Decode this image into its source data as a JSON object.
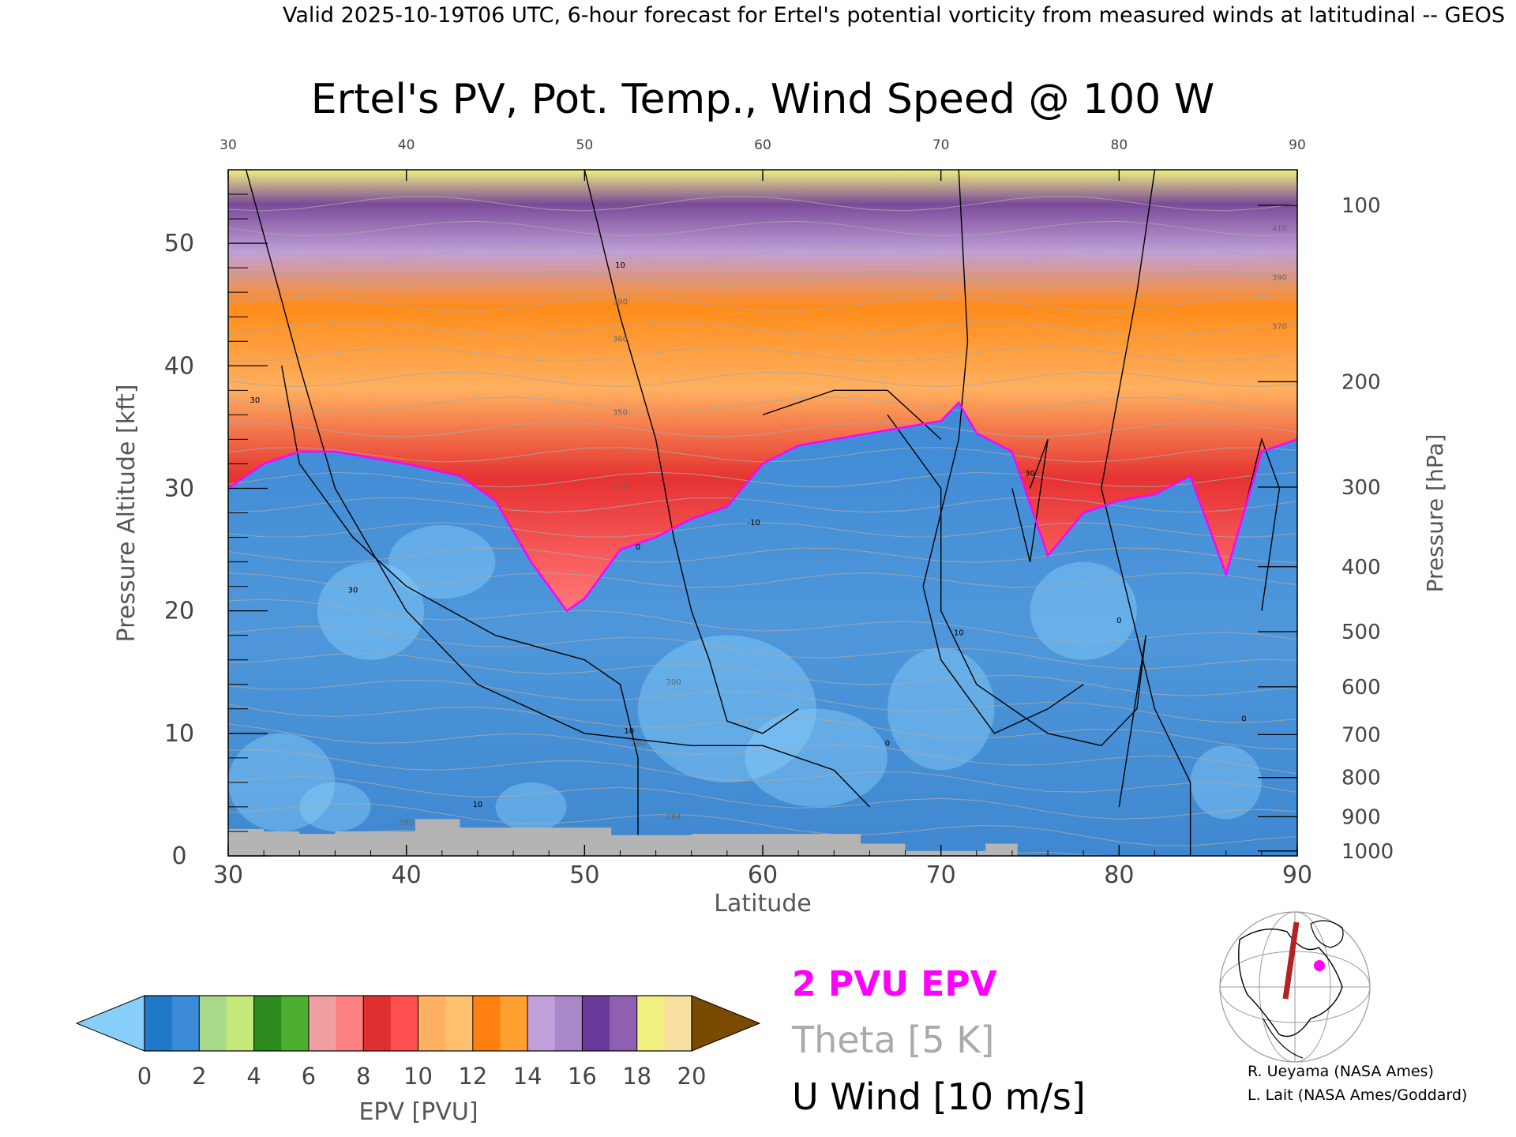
{
  "header": {
    "valid_line": "Valid 2025-10-19T06 UTC, 6-hour forecast for Ertel's potential vorticity from measured winds at latitudinal -- GEOS"
  },
  "chart_data": {
    "type": "heatmap",
    "title": "Ertel's PV, Pot. Temp., Wind Speed @ 100 W",
    "xlabel": "Latitude",
    "ylabel": "Pressure Altitude [kft]",
    "ylabel_right": "Pressure [hPa]",
    "xlim": [
      30,
      90
    ],
    "ylim": [
      0,
      56
    ],
    "x_ticks": [
      "30",
      "40",
      "50",
      "60",
      "70",
      "80",
      "90"
    ],
    "y_ticks": [
      "0",
      "10",
      "20",
      "30",
      "40",
      "50"
    ],
    "pressure_ticks": [
      {
        "label": "100",
        "kft": 53.1
      },
      {
        "label": "200",
        "kft": 38.7
      },
      {
        "label": "300",
        "kft": 30.1
      },
      {
        "label": "400",
        "kft": 23.6
      },
      {
        "label": "500",
        "kft": 18.3
      },
      {
        "label": "600",
        "kft": 13.8
      },
      {
        "label": "700",
        "kft": 9.9
      },
      {
        "label": "800",
        "kft": 6.4
      },
      {
        "label": "900",
        "kft": 3.2
      },
      {
        "label": "1000",
        "kft": 0.4
      }
    ],
    "tropopause_2pvu_kft": [
      {
        "lat": 30,
        "kft": 30
      },
      {
        "lat": 32,
        "kft": 32
      },
      {
        "lat": 34,
        "kft": 33
      },
      {
        "lat": 36,
        "kft": 33
      },
      {
        "lat": 40,
        "kft": 32
      },
      {
        "lat": 43,
        "kft": 31
      },
      {
        "lat": 45,
        "kft": 29
      },
      {
        "lat": 47,
        "kft": 24
      },
      {
        "lat": 49,
        "kft": 20
      },
      {
        "lat": 50,
        "kft": 21
      },
      {
        "lat": 52,
        "kft": 25
      },
      {
        "lat": 54,
        "kft": 26
      },
      {
        "lat": 56,
        "kft": 27.5
      },
      {
        "lat": 58,
        "kft": 28.5
      },
      {
        "lat": 60,
        "kft": 32
      },
      {
        "lat": 62,
        "kft": 33.5
      },
      {
        "lat": 64,
        "kft": 34
      },
      {
        "lat": 66,
        "kft": 34.5
      },
      {
        "lat": 68,
        "kft": 35
      },
      {
        "lat": 70,
        "kft": 35.5
      },
      {
        "lat": 71,
        "kft": 37
      },
      {
        "lat": 72,
        "kft": 34.5
      },
      {
        "lat": 74,
        "kft": 33
      },
      {
        "lat": 76,
        "kft": 24.5
      },
      {
        "lat": 78,
        "kft": 28
      },
      {
        "lat": 80,
        "kft": 29
      },
      {
        "lat": 82,
        "kft": 29.5
      },
      {
        "lat": 84,
        "kft": 31
      },
      {
        "lat": 86,
        "kft": 23
      },
      {
        "lat": 88,
        "kft": 33
      },
      {
        "lat": 90,
        "kft": 34
      }
    ],
    "theta_contour_labels": [
      "420",
      "390",
      "360",
      "350",
      "330",
      "300",
      "290",
      "290",
      "284",
      "410",
      "390",
      "370"
    ],
    "u_wind_contour_labels": [
      "30",
      "30",
      "10",
      "10",
      "0",
      "0",
      "-10",
      "10",
      "10",
      "30",
      "0",
      "0"
    ],
    "terrain_kft": [
      {
        "lat": 30,
        "kft": 2.2
      },
      {
        "lat": 32,
        "kft": 2.0
      },
      {
        "lat": 34,
        "kft": 1.8
      },
      {
        "lat": 36,
        "kft": 2.0
      },
      {
        "lat": 40,
        "kft": 2.0
      },
      {
        "lat": 40.5,
        "kft": 3.0
      },
      {
        "lat": 43,
        "kft": 2.3
      },
      {
        "lat": 48,
        "kft": 2.3
      },
      {
        "lat": 51.5,
        "kft": 1.7
      },
      {
        "lat": 56,
        "kft": 1.8
      },
      {
        "lat": 61,
        "kft": 1.8
      },
      {
        "lat": 65.5,
        "kft": 1.0
      },
      {
        "lat": 68,
        "kft": 0.4
      },
      {
        "lat": 72.5,
        "kft": 1.0
      },
      {
        "lat": 74.3,
        "kft": 0.0
      }
    ],
    "colorbar": {
      "label": "EPV [PVU]",
      "ticks": [
        "0",
        "2",
        "4",
        "6",
        "8",
        "10",
        "12",
        "14",
        "16",
        "18",
        "20"
      ],
      "colors": [
        "#87cefa",
        "#1f78c8",
        "#3c8bd8",
        "#a8d88a",
        "#c4e87a",
        "#2e8b20",
        "#4caf30",
        "#f0a0a0",
        "#ff8080",
        "#e03030",
        "#ff5050",
        "#ffb060",
        "#ffc070",
        "#ff8010",
        "#ffa030",
        "#c0a0d8",
        "#a888c8",
        "#6a3a9a",
        "#9060b0",
        "#f0f080",
        "#f8e0a0",
        "#7a4a00"
      ]
    },
    "legend": [
      {
        "text": "2 PVU EPV",
        "color": "#ff00ff"
      },
      {
        "text": "Theta [5 K]",
        "color": "#aaaaaa"
      },
      {
        "text": "U Wind [10 m/s]",
        "color": "#000000"
      }
    ],
    "map_inset": {
      "track_color": "#b22222",
      "marker_color": "#ff00ff"
    }
  },
  "credits": {
    "line1": "R. Ueyama (NASA Ames)",
    "line2": "L. Lait (NASA Ames/Goddard)"
  }
}
